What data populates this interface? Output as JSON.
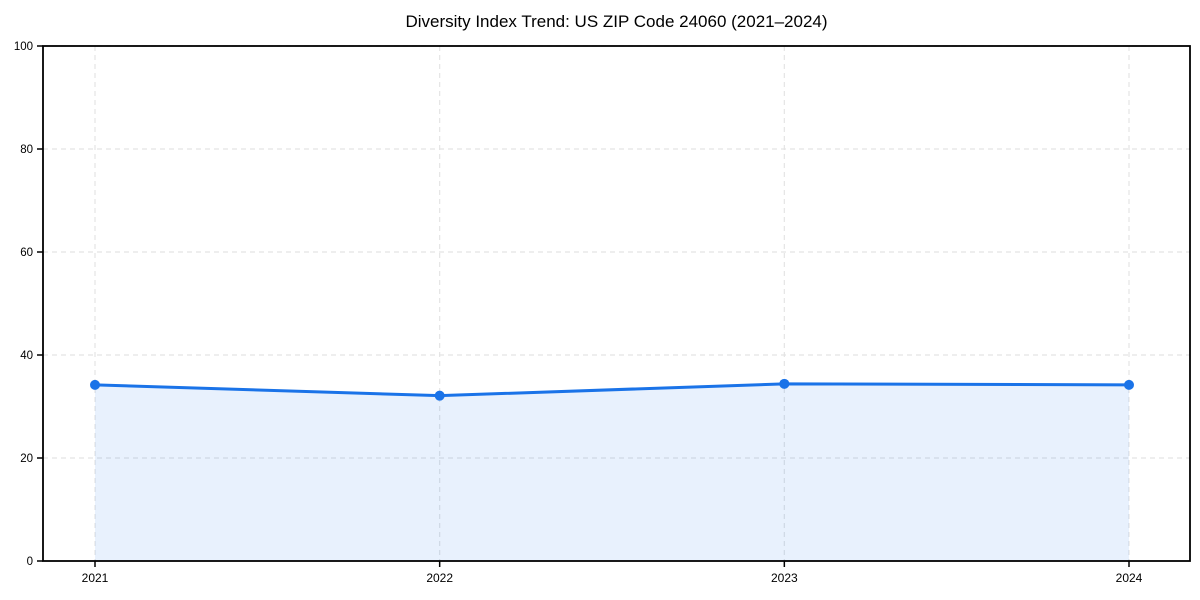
{
  "chart_data": {
    "type": "area",
    "title": "Diversity Index Trend: US ZIP Code 24060 (2021–2024)",
    "x": [
      2021,
      2022,
      2023,
      2024
    ],
    "series": [
      {
        "name": "Diversity Index",
        "values": [
          34.2,
          32.1,
          34.4,
          34.2
        ]
      }
    ],
    "xlabel": "",
    "ylabel": "",
    "ylim": [
      0,
      100
    ],
    "yticks": [
      0,
      20,
      40,
      60,
      80,
      100
    ],
    "xticks": [
      "2021",
      "2022",
      "2023",
      "2024"
    ],
    "grid": true,
    "grid_style": "dashed",
    "legend_position": "none",
    "marker": "circle",
    "colors": {
      "line": "#1a73e8",
      "marker": "#1a73e8",
      "fill": "rgba(26,115,232,0.10)",
      "grid": "#e4e4e4",
      "axis": "#000000",
      "background": "#ffffff",
      "text": "#000000"
    }
  }
}
